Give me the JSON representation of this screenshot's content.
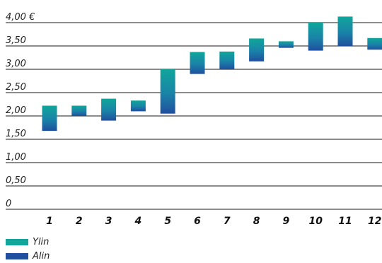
{
  "chart_data": {
    "type": "bar",
    "subtype": "floating-range",
    "categories": [
      "1",
      "2",
      "3",
      "4",
      "5",
      "6",
      "7",
      "8",
      "9",
      "10",
      "11",
      "12"
    ],
    "series": [
      {
        "name": "Ylin",
        "values": [
          2.22,
          2.22,
          2.37,
          2.33,
          3.0,
          3.37,
          3.38,
          3.66,
          3.6,
          4.0,
          4.13,
          3.67
        ]
      },
      {
        "name": "Alin",
        "values": [
          1.68,
          2.0,
          1.9,
          2.1,
          2.05,
          2.9,
          3.0,
          3.17,
          3.46,
          3.4,
          3.5,
          3.42
        ]
      }
    ],
    "y_tick_labels": [
      "0",
      "0,50",
      "1,00",
      "1,50",
      "2,00",
      "2,50",
      "3,00",
      "3,50",
      "4,00 €"
    ],
    "ylim": [
      0,
      4.0
    ],
    "grid": true,
    "legend_position": "bottom-left",
    "colors": {
      "high": "#10a69a",
      "low": "#1f4f9e",
      "grid": "#1a1a1a"
    }
  }
}
